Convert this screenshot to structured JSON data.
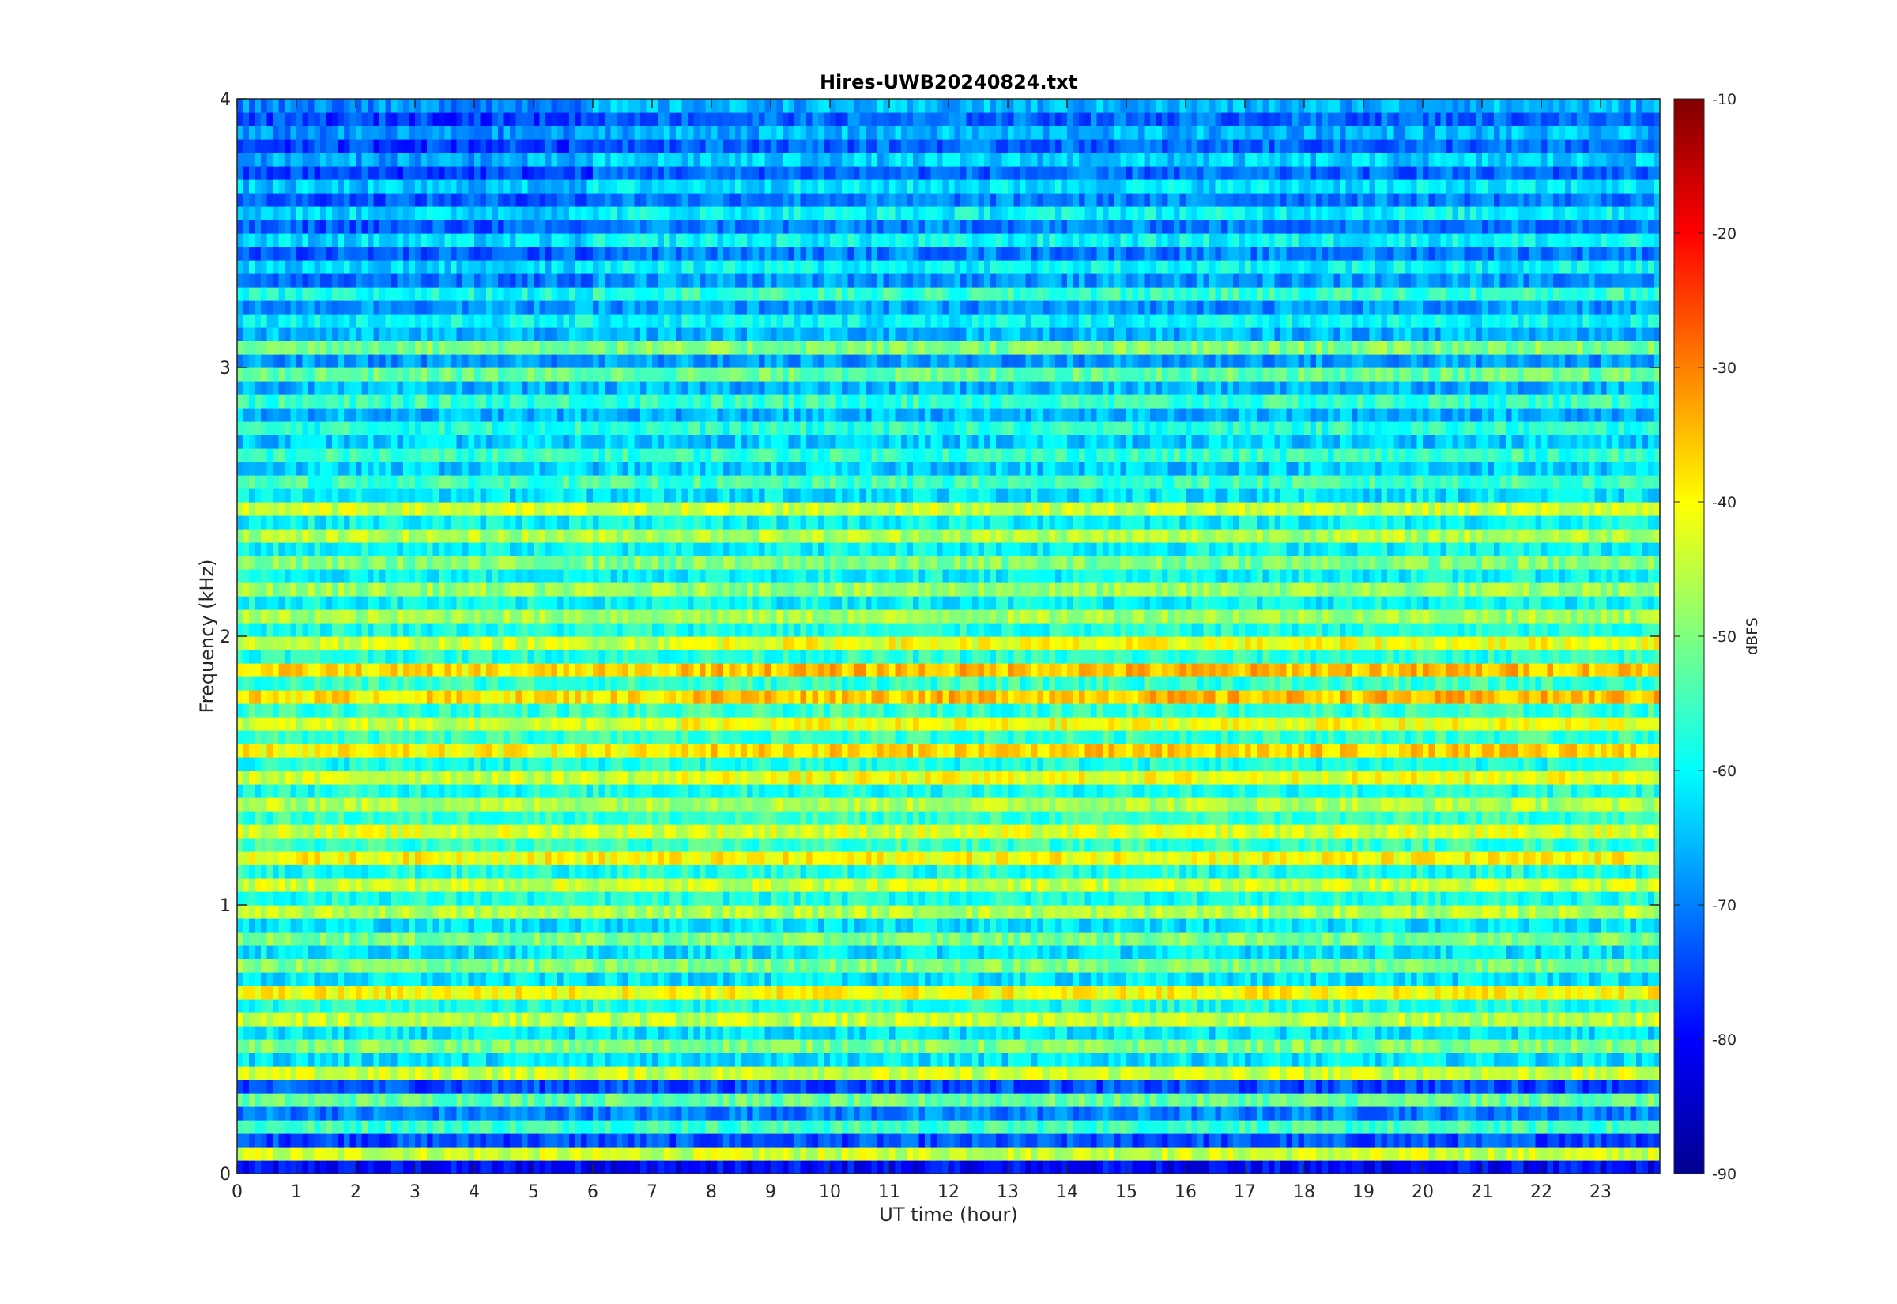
{
  "chart_data": {
    "type": "heatmap",
    "title": "Hires-UWB20240824.txt",
    "xlabel": "UT time (hour)",
    "ylabel": "Frequency (kHz)",
    "xlim": [
      0,
      24
    ],
    "ylim": [
      0,
      4
    ],
    "x_ticks": [
      0,
      1,
      2,
      3,
      4,
      5,
      6,
      7,
      8,
      9,
      10,
      11,
      12,
      13,
      14,
      15,
      16,
      17,
      18,
      19,
      20,
      21,
      22,
      23
    ],
    "y_ticks": [
      0,
      1,
      2,
      3,
      4
    ],
    "colormap": "jet",
    "colorbar": {
      "label": "dBFS",
      "range": [
        -90,
        -10
      ],
      "ticks": [
        -90,
        -80,
        -70,
        -60,
        -50,
        -40,
        -30,
        -20,
        -10
      ]
    },
    "bands": [
      {
        "f": 0.0,
        "level": -80
      },
      {
        "f": 0.05,
        "level": -44
      },
      {
        "f": 0.1,
        "level": -74
      },
      {
        "f": 0.15,
        "level": -55
      },
      {
        "f": 0.2,
        "level": -70
      },
      {
        "f": 0.25,
        "level": -52
      },
      {
        "f": 0.3,
        "level": -74
      },
      {
        "f": 0.35,
        "level": -44
      },
      {
        "f": 0.4,
        "level": -62
      },
      {
        "f": 0.45,
        "level": -50
      },
      {
        "f": 0.5,
        "level": -62
      },
      {
        "f": 0.55,
        "level": -45
      },
      {
        "f": 0.6,
        "level": -58
      },
      {
        "f": 0.65,
        "level": -40
      },
      {
        "f": 0.7,
        "level": -62
      },
      {
        "f": 0.75,
        "level": -50
      },
      {
        "f": 0.8,
        "level": -62
      },
      {
        "f": 0.85,
        "level": -50
      },
      {
        "f": 0.9,
        "level": -62
      },
      {
        "f": 0.95,
        "level": -46
      },
      {
        "f": 1.0,
        "level": -58
      },
      {
        "f": 1.05,
        "level": -44
      },
      {
        "f": 1.1,
        "level": -58
      },
      {
        "f": 1.15,
        "level": -40
      },
      {
        "f": 1.2,
        "level": -56
      },
      {
        "f": 1.25,
        "level": -43
      },
      {
        "f": 1.3,
        "level": -56
      },
      {
        "f": 1.35,
        "level": -46
      },
      {
        "f": 1.4,
        "level": -58
      },
      {
        "f": 1.45,
        "level": -44
      },
      {
        "f": 1.5,
        "level": -58
      },
      {
        "f": 1.55,
        "level": -40
      },
      {
        "f": 1.6,
        "level": -56
      },
      {
        "f": 1.65,
        "level": -44
      },
      {
        "f": 1.7,
        "level": -56
      },
      {
        "f": 1.75,
        "level": -38
      },
      {
        "f": 1.8,
        "level": -56
      },
      {
        "f": 1.85,
        "level": -38
      },
      {
        "f": 1.9,
        "level": -57
      },
      {
        "f": 1.95,
        "level": -44
      },
      {
        "f": 2.0,
        "level": -58
      },
      {
        "f": 2.05,
        "level": -47
      },
      {
        "f": 2.1,
        "level": -60
      },
      {
        "f": 2.15,
        "level": -48
      },
      {
        "f": 2.2,
        "level": -60
      },
      {
        "f": 2.25,
        "level": -50
      },
      {
        "f": 2.3,
        "level": -60
      },
      {
        "f": 2.35,
        "level": -46
      },
      {
        "f": 2.4,
        "level": -60
      },
      {
        "f": 2.45,
        "level": -44
      },
      {
        "f": 2.5,
        "level": -62
      },
      {
        "f": 2.55,
        "level": -55
      },
      {
        "f": 2.6,
        "level": -64
      },
      {
        "f": 2.65,
        "level": -56
      },
      {
        "f": 2.7,
        "level": -64
      },
      {
        "f": 2.75,
        "level": -57
      },
      {
        "f": 2.8,
        "level": -66
      },
      {
        "f": 2.85,
        "level": -56
      },
      {
        "f": 2.9,
        "level": -66
      },
      {
        "f": 2.95,
        "level": -52
      },
      {
        "f": 3.0,
        "level": -68
      },
      {
        "f": 3.05,
        "level": -50
      },
      {
        "f": 3.1,
        "level": -66
      },
      {
        "f": 3.15,
        "level": -60
      },
      {
        "f": 3.2,
        "level": -68
      },
      {
        "f": 3.25,
        "level": -56
      },
      {
        "f": 3.3,
        "level": -68
      },
      {
        "f": 3.35,
        "level": -60
      },
      {
        "f": 3.4,
        "level": -70
      },
      {
        "f": 3.45,
        "level": -60
      },
      {
        "f": 3.5,
        "level": -70
      },
      {
        "f": 3.55,
        "level": -60
      },
      {
        "f": 3.6,
        "level": -70
      },
      {
        "f": 3.65,
        "level": -62
      },
      {
        "f": 3.7,
        "level": -72
      },
      {
        "f": 3.75,
        "level": -64
      },
      {
        "f": 3.8,
        "level": -72
      },
      {
        "f": 3.85,
        "level": -66
      },
      {
        "f": 3.9,
        "level": -72
      },
      {
        "f": 3.95,
        "level": -66
      }
    ]
  }
}
